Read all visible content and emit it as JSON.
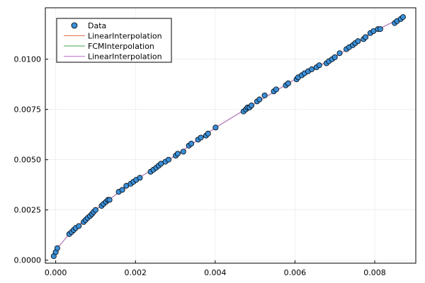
{
  "chart_data": {
    "type": "scatter",
    "title": "",
    "xlabel": "",
    "ylabel": "",
    "xlim": [
      -0.00026,
      0.00903
    ],
    "ylim": [
      -0.00015,
      0.01256
    ],
    "grid": true,
    "legend_position": "top-left",
    "x_ticks": [
      0.0,
      0.002,
      0.004,
      0.006,
      0.008
    ],
    "x_tick_labels": [
      "0.000",
      "0.002",
      "0.004",
      "0.006",
      "0.008"
    ],
    "y_ticks": [
      0.0,
      0.0025,
      0.005,
      0.0075,
      0.01
    ],
    "y_tick_labels": [
      "0.0000",
      "0.0025",
      "0.0050",
      "0.0075",
      "0.0100"
    ],
    "legend": [
      "Data",
      "LinearInterpolation",
      "FCMInterpolation",
      "LinearInterpolation"
    ],
    "series": [
      {
        "name": "Data",
        "kind": "scatter",
        "color": "#3a8fd8",
        "x": [
          -5e-05,
          0.0,
          4e-05,
          0.00034,
          0.0004,
          0.00045,
          0.0005,
          0.00058,
          0.0007,
          0.00075,
          0.0008,
          0.00086,
          0.00091,
          0.00095,
          0.001,
          0.00115,
          0.0012,
          0.00126,
          0.00131,
          0.00135,
          0.00158,
          0.00167,
          0.00177,
          0.00188,
          0.00195,
          0.00202,
          0.00211,
          0.00238,
          0.00245,
          0.00252,
          0.00258,
          0.00264,
          0.00275,
          0.00283,
          0.00301,
          0.00306,
          0.0032,
          0.00334,
          0.0034,
          0.00357,
          0.00364,
          0.00377,
          0.00382,
          0.00401,
          0.00471,
          0.00477,
          0.00481,
          0.00486,
          0.00491,
          0.00505,
          0.00511,
          0.00524,
          0.00547,
          0.00553,
          0.00577,
          0.00583,
          0.00604,
          0.00608,
          0.00617,
          0.00624,
          0.00633,
          0.00642,
          0.00654,
          0.00661,
          0.00679,
          0.00685,
          0.00693,
          0.007,
          0.00712,
          0.00729,
          0.00736,
          0.00745,
          0.00751,
          0.00758,
          0.00772,
          0.00777,
          0.00789,
          0.00797,
          0.00808,
          0.00814,
          0.0085,
          0.00856,
          0.00865,
          0.00871
        ],
        "y": [
          0.0002,
          0.0004,
          0.0006,
          0.0013,
          0.0014,
          0.0015,
          0.0016,
          0.0017,
          0.0019,
          0.002,
          0.0021,
          0.0022,
          0.0023,
          0.0024,
          0.0025,
          0.0027,
          0.0028,
          0.0029,
          0.003,
          0.003,
          0.0034,
          0.0035,
          0.0037,
          0.0038,
          0.0039,
          0.004,
          0.0041,
          0.0044,
          0.0045,
          0.0046,
          0.0047,
          0.0048,
          0.0049,
          0.005,
          0.0052,
          0.0053,
          0.0054,
          0.0057,
          0.0058,
          0.006,
          0.0061,
          0.0062,
          0.0063,
          0.0066,
          0.0074,
          0.0075,
          0.0076,
          0.0076,
          0.0077,
          0.0079,
          0.008,
          0.0082,
          0.0084,
          0.0085,
          0.0087,
          0.0088,
          0.009,
          0.0091,
          0.0092,
          0.0093,
          0.0094,
          0.0095,
          0.0096,
          0.0097,
          0.0098,
          0.0099,
          0.01,
          0.0101,
          0.0103,
          0.0105,
          0.0106,
          0.0107,
          0.0108,
          0.0109,
          0.011,
          0.0111,
          0.0113,
          0.0114,
          0.0115,
          0.0115,
          0.0118,
          0.0119,
          0.012,
          0.0121
        ]
      },
      {
        "name": "LinearInterpolation",
        "kind": "line",
        "color": "#e26f46",
        "x": [
          -5e-05,
          0.0,
          4e-05,
          0.00034,
          0.001,
          0.002,
          0.003,
          0.00401,
          0.005,
          0.006,
          0.007,
          0.008,
          0.00871
        ],
        "y": [
          0.0002,
          0.0004,
          0.0006,
          0.0013,
          0.0025,
          0.004,
          0.0052,
          0.0066,
          0.0078,
          0.009,
          0.0101,
          0.0114,
          0.0121
        ]
      },
      {
        "name": "FCMInterpolation",
        "kind": "line",
        "color": "#3da44d",
        "x": [
          -5e-05,
          0.0,
          4e-05,
          0.00034,
          0.001,
          0.002,
          0.003,
          0.00401,
          0.005,
          0.006,
          0.007,
          0.008,
          0.00871
        ],
        "y": [
          0.0002,
          0.0004,
          0.0006,
          0.0013,
          0.0025,
          0.004,
          0.0052,
          0.0066,
          0.0078,
          0.009,
          0.0101,
          0.0114,
          0.0121
        ]
      },
      {
        "name": "LinearInterpolation",
        "kind": "line",
        "color": "#c271d2",
        "x": [
          -5e-05,
          0.0,
          4e-05,
          0.00034,
          0.001,
          0.002,
          0.003,
          0.00401,
          0.005,
          0.006,
          0.007,
          0.008,
          0.00871
        ],
        "y": [
          0.0002,
          0.0004,
          0.0006,
          0.0013,
          0.0025,
          0.004,
          0.0052,
          0.0066,
          0.0078,
          0.009,
          0.0101,
          0.0114,
          0.0121
        ]
      }
    ]
  }
}
